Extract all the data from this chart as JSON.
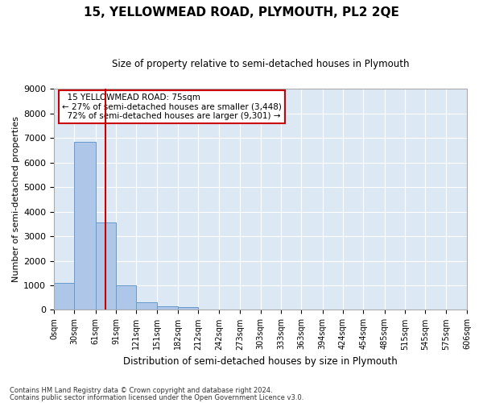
{
  "title": "15, YELLOWMEAD ROAD, PLYMOUTH, PL2 2QE",
  "subtitle": "Size of property relative to semi-detached houses in Plymouth",
  "xlabel": "Distribution of semi-detached houses by size in Plymouth",
  "ylabel": "Number of semi-detached properties",
  "property_label": "15 YELLOWMEAD ROAD: 75sqm",
  "pct_smaller": 27,
  "pct_larger": 72,
  "n_smaller": 3448,
  "n_larger": 9301,
  "bin_edges": [
    0,
    30,
    61,
    91,
    121,
    151,
    182,
    212,
    242,
    273,
    303,
    333,
    363,
    394,
    424,
    454,
    485,
    515,
    545,
    575,
    606
  ],
  "bin_labels": [
    "0sqm",
    "30sqm",
    "61sqm",
    "91sqm",
    "121sqm",
    "151sqm",
    "182sqm",
    "212sqm",
    "242sqm",
    "273sqm",
    "303sqm",
    "333sqm",
    "363sqm",
    "394sqm",
    "424sqm",
    "454sqm",
    "485sqm",
    "515sqm",
    "545sqm",
    "575sqm",
    "606sqm"
  ],
  "bar_heights": [
    1100,
    6850,
    3550,
    1000,
    320,
    140,
    100,
    0,
    0,
    0,
    0,
    0,
    0,
    0,
    0,
    0,
    0,
    0,
    0,
    0
  ],
  "bar_color": "#aec6e8",
  "bar_edge_color": "#6699cc",
  "vline_color": "#cc0000",
  "vline_x": 75,
  "ylim": [
    0,
    9000
  ],
  "yticks": [
    0,
    1000,
    2000,
    3000,
    4000,
    5000,
    6000,
    7000,
    8000,
    9000
  ],
  "bg_color": "#dde8f5",
  "grid_color": "#ffffff",
  "fig_bg_color": "#ffffff",
  "annotation_box_color": "#ffffff",
  "annotation_box_edge": "#cc0000",
  "footnote1": "Contains HM Land Registry data © Crown copyright and database right 2024.",
  "footnote2": "Contains public sector information licensed under the Open Government Licence v3.0."
}
